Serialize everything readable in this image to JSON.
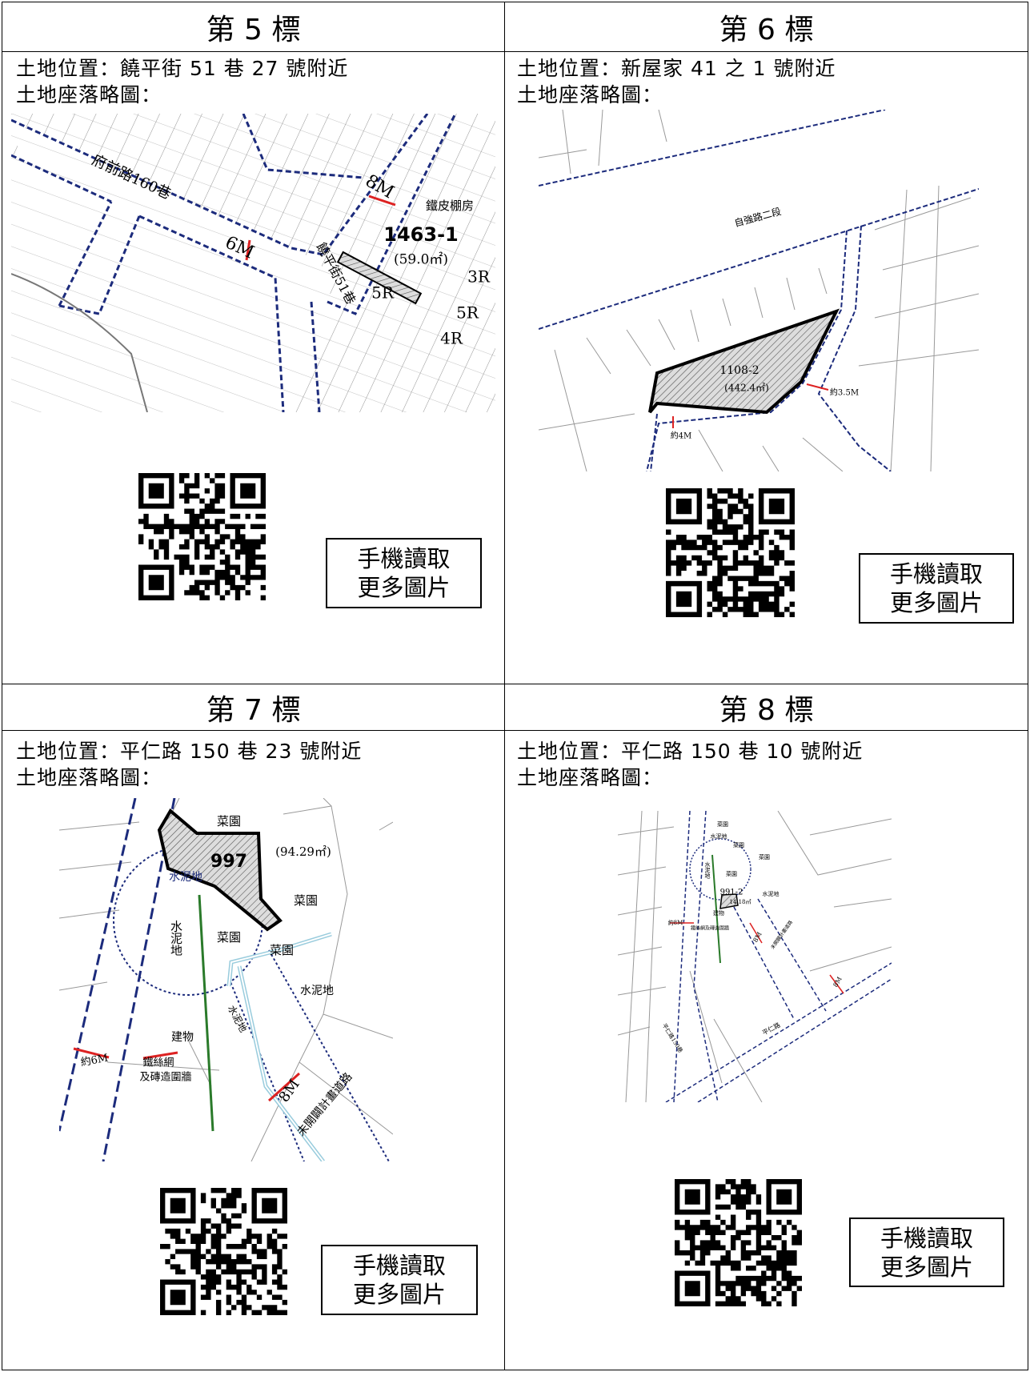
{
  "lots": [
    {
      "title": "第 5 標",
      "location": "土地位置：饒平街 51 巷 27 號附近",
      "sketch_label": "土地座落略圖：",
      "map_labels": [
        "府前路160巷",
        "6M",
        "8M",
        "鐵皮棚房",
        "1463-1",
        "(59.0㎡)",
        "饒平街51巷",
        "5R",
        "3R",
        "5R",
        "4R"
      ],
      "qr_caption": [
        "手機讀取",
        "更多圖片"
      ]
    },
    {
      "title": "第 6 標",
      "location": "土地位置：新屋家 41 之 1 號附近",
      "sketch_label": "土地座落略圖：",
      "map_labels": [
        "自強路二段",
        "1108-2",
        "(442.4㎡)",
        "約3.5M",
        "約4M"
      ],
      "qr_caption": [
        "手機讀取",
        "更多圖片"
      ]
    },
    {
      "title": "第 7 標",
      "location": "土地位置：平仁路 150 巷 23 號附近",
      "sketch_label": "土地座落略圖：",
      "map_labels": [
        "菜園",
        "997",
        "(94.29㎡)",
        "水泥地",
        "菜園",
        "水泥地",
        "菜園",
        "菜園",
        "水泥地",
        "建物",
        "約6M",
        "鐵絲網",
        "及磚造圍牆",
        "水泥地",
        "8M",
        "未開闢計畫道路"
      ],
      "qr_caption": [
        "手機讀取",
        "更多圖片"
      ]
    },
    {
      "title": "第 8 標",
      "location": "土地位置：平仁路 150 巷 10 號附近",
      "sketch_label": "土地座落略圖：",
      "map_labels": [
        "菜園",
        "水泥地",
        "菜園",
        "菜園",
        "菜園",
        "水泥地",
        "水泥地",
        "991-2",
        "14.18㎡",
        "建物",
        "約8M",
        "鐵絲網及磚造圍牆",
        "8M",
        "未開闢計畫道路",
        "8M",
        "平仁路150巷",
        "平仁路"
      ],
      "qr_caption": [
        "手機讀取",
        "更多圖片"
      ]
    }
  ]
}
